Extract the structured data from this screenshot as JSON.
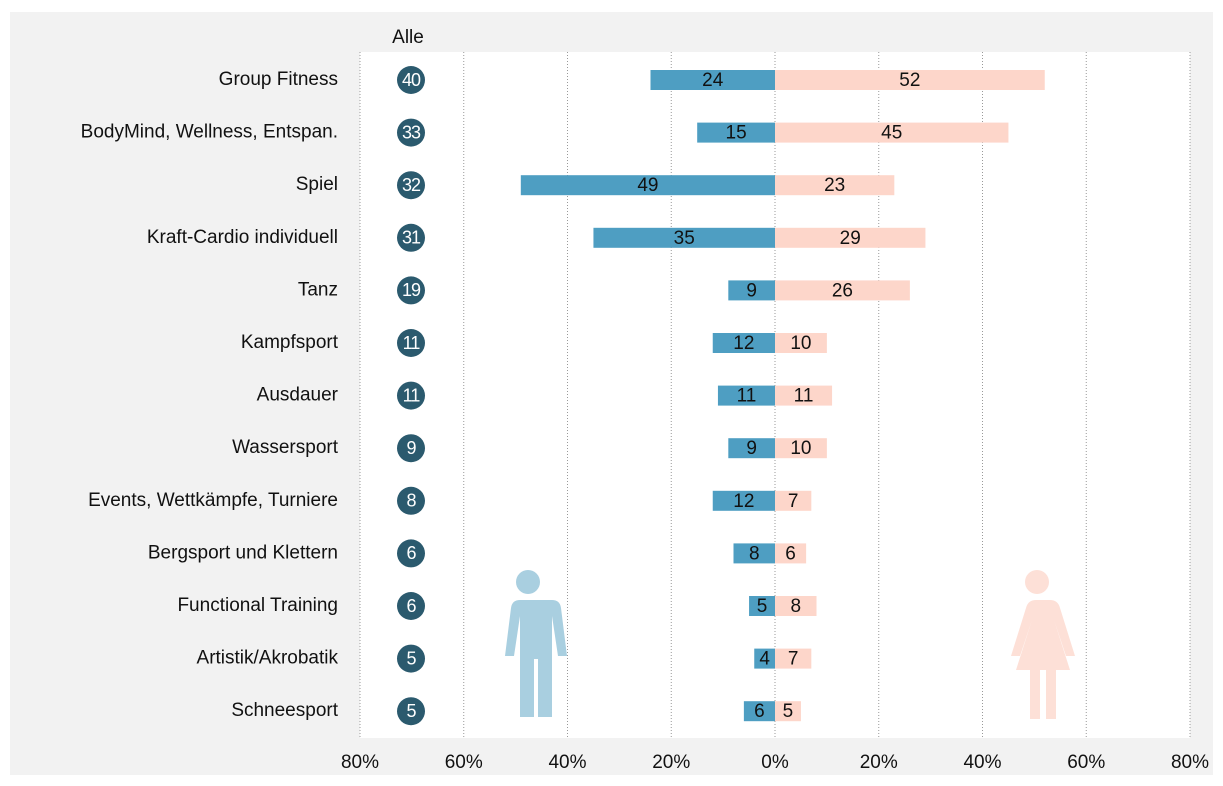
{
  "chart_data": {
    "type": "butterfly",
    "categories": [
      "Group Fitness",
      "BodyMind, Wellness, Entspan.",
      "Spiel",
      "Kraft-Cardio individuell",
      "Tanz",
      "Kampfsport",
      "Ausdauer",
      "Wassersport",
      "Events, Wettkämpfe, Turniere",
      "Bergsport und Klettern",
      "Functional Training",
      "Artistik/Akrobatik",
      "Schneesport"
    ],
    "alle": {
      "name": "Alle",
      "color": "#2b5a6e",
      "values": [
        40,
        33,
        32,
        31,
        19,
        11,
        11,
        9,
        8,
        6,
        6,
        5,
        5
      ]
    },
    "series": [
      {
        "color": "#4e9ec2",
        "direction": "left",
        "values": [
          24,
          15,
          49,
          35,
          9,
          12,
          11,
          9,
          12,
          8,
          5,
          4,
          6
        ]
      },
      {
        "color": "#fdd6ca",
        "direction": "right",
        "values": [
          52,
          45,
          23,
          29,
          26,
          10,
          11,
          10,
          7,
          6,
          8,
          7,
          5
        ]
      }
    ],
    "xlim": [
      -80,
      80
    ],
    "xticks": [
      {
        "value": -80,
        "label": "80%"
      },
      {
        "value": -60,
        "label": "60%"
      },
      {
        "value": -40,
        "label": "40%"
      },
      {
        "value": -20,
        "label": "20%"
      },
      {
        "value": 0,
        "label": "0%"
      },
      {
        "value": 20,
        "label": "20%"
      },
      {
        "value": 40,
        "label": "40%"
      },
      {
        "value": 60,
        "label": "60%"
      },
      {
        "value": 80,
        "label": "80%"
      }
    ],
    "grid": true
  }
}
